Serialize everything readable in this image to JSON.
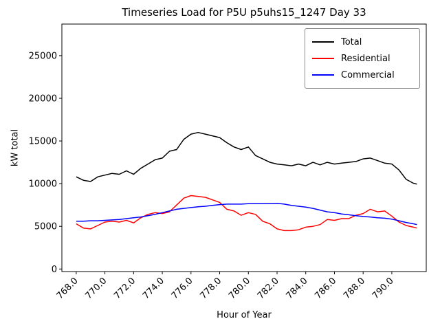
{
  "chart": {
    "title": "Timeseries Load for P5U p5uhs15_1247  Day 33",
    "xlabel": "Hour of Year",
    "ylabel": "kW total"
  },
  "chart_data": {
    "type": "line",
    "title": "Timeseries Load for P5U p5uhs15_1247  Day 33",
    "xlabel": "Hour of Year",
    "ylabel": "kW total",
    "grid": false,
    "legend_position": "upper right",
    "xlim": [
      767.0,
      792.4
    ],
    "ylim": [
      -300,
      28700
    ],
    "x_ticks": [
      768,
      770,
      772,
      774,
      776,
      778,
      780,
      782,
      784,
      786,
      788,
      790
    ],
    "x_tick_labels": [
      "768.0",
      "770.0",
      "772.0",
      "774.0",
      "776.0",
      "778.0",
      "780.0",
      "782.0",
      "784.0",
      "786.0",
      "788.0",
      "790.0"
    ],
    "y_ticks": [
      0,
      5000,
      10000,
      15000,
      20000,
      25000
    ],
    "y_tick_labels": [
      "0",
      "5000",
      "10000",
      "15000",
      "20000",
      "25000"
    ],
    "x": [
      768,
      768.5,
      769,
      769.5,
      770,
      770.5,
      771,
      771.5,
      772,
      772.5,
      773,
      773.5,
      774,
      774.5,
      775,
      775.5,
      776,
      776.5,
      777,
      777.5,
      778,
      778.5,
      779,
      779.5,
      780,
      780.5,
      781,
      781.5,
      782,
      782.5,
      783,
      783.5,
      784,
      784.5,
      785,
      785.5,
      786,
      786.5,
      787,
      787.5,
      788,
      788.5,
      789,
      789.5,
      790,
      790.5,
      791,
      791.5,
      791.75
    ],
    "series": [
      {
        "name": "Total",
        "color": "#000000",
        "values": [
          10800,
          10400,
          10250,
          10800,
          11000,
          11200,
          11100,
          11500,
          11100,
          11800,
          12300,
          12800,
          13000,
          13800,
          14000,
          15200,
          15800,
          16000,
          15800,
          15600,
          15400,
          14800,
          14300,
          14000,
          14300,
          13300,
          12900,
          12500,
          12300,
          12200,
          12100,
          12300,
          12100,
          12500,
          12200,
          12500,
          12300,
          12400,
          12500,
          12600,
          12900,
          13000,
          12700,
          12400,
          12300,
          11600,
          10500,
          10050,
          9950
        ]
      },
      {
        "name": "Residential",
        "color": "#ff0000",
        "values": [
          5300,
          4800,
          4700,
          5100,
          5500,
          5600,
          5500,
          5700,
          5400,
          6000,
          6400,
          6600,
          6500,
          6700,
          7500,
          8300,
          8600,
          8500,
          8400,
          8100,
          7800,
          7000,
          6800,
          6300,
          6600,
          6400,
          5600,
          5300,
          4700,
          4500,
          4500,
          4600,
          4900,
          5000,
          5200,
          5800,
          5700,
          5900,
          5900,
          6300,
          6500,
          7000,
          6700,
          6800,
          6200,
          5500,
          5100,
          4900,
          4800
        ]
      },
      {
        "name": "Commercial",
        "color": "#0000ff",
        "values": [
          5600,
          5600,
          5650,
          5650,
          5700,
          5750,
          5800,
          5900,
          6000,
          6100,
          6250,
          6400,
          6600,
          6800,
          7000,
          7100,
          7200,
          7300,
          7350,
          7450,
          7550,
          7600,
          7600,
          7600,
          7650,
          7650,
          7650,
          7650,
          7700,
          7600,
          7450,
          7350,
          7250,
          7100,
          6900,
          6700,
          6600,
          6450,
          6350,
          6250,
          6150,
          6100,
          6000,
          5950,
          5850,
          5650,
          5450,
          5300,
          5200
        ]
      }
    ]
  }
}
